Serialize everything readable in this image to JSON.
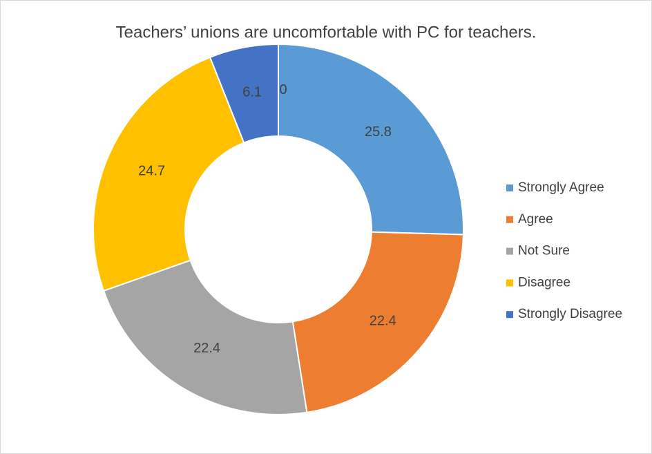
{
  "chart_data": {
    "type": "donut",
    "title": "Teachers’ unions are uncomfortable with PC for teachers.",
    "categories": [
      "Strongly Agree",
      "Agree",
      "Not Sure",
      "Disagree",
      "Strongly Disagree",
      null
    ],
    "values": [
      25.8,
      22.4,
      22.4,
      24.7,
      6.1,
      0
    ],
    "colors": [
      "#5b9bd5",
      "#ed7d31",
      "#a5a5a5",
      "#ffc000",
      "#4472c4",
      "#70ad47"
    ],
    "legend": "right"
  }
}
